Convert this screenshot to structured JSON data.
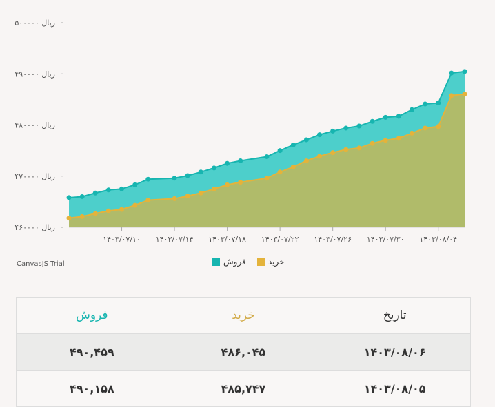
{
  "chart_data": {
    "type": "area",
    "y_unit_label": "ریال",
    "ylim": [
      460000,
      500000
    ],
    "yticks": [
      "۴۶۰۰۰۰",
      "۴۷۰۰۰۰",
      "۴۸۰۰۰۰",
      "۴۹۰۰۰۰",
      "۵۰۰۰۰۰"
    ],
    "ytick_values": [
      460000,
      470000,
      480000,
      490000,
      500000
    ],
    "x_ticklabels": [
      "۱۴۰۳/۰۷/۱۰",
      "۱۴۰۳/۰۷/۱۴",
      "۱۴۰۳/۰۷/۱۸",
      "۱۴۰۳/۰۷/۲۲",
      "۱۴۰۳/۰۷/۲۶",
      "۱۴۰۳/۰۷/۳۰",
      "۱۴۰۳/۰۸/۰۴"
    ],
    "x_tick_days": [
      10,
      14,
      18,
      22,
      26,
      30,
      34
    ],
    "x_days": [
      6,
      7,
      8,
      9,
      10,
      11,
      12,
      14,
      15,
      16,
      17,
      18,
      19,
      21,
      22,
      23,
      24,
      25,
      26,
      27,
      28,
      29,
      30,
      31,
      32,
      33,
      34,
      35,
      36
    ],
    "series": [
      {
        "name": "فروش",
        "color": "#17b5b0",
        "fill": "#4dcfcb",
        "values": [
          465800,
          466000,
          466700,
          467300,
          467500,
          468300,
          469400,
          469600,
          470100,
          470800,
          471600,
          472500,
          473000,
          473800,
          475000,
          476100,
          477100,
          478100,
          478800,
          479400,
          479800,
          480700,
          481500,
          481700,
          483000,
          484100,
          484300,
          490158,
          490459
        ]
      },
      {
        "name": "خرید",
        "color": "#e4b33b",
        "fill": "#b0bb6a",
        "values": [
          461800,
          462100,
          462700,
          463200,
          463500,
          464300,
          465300,
          465600,
          466100,
          466700,
          467500,
          468300,
          468800,
          469600,
          470800,
          471800,
          473000,
          473900,
          474600,
          475200,
          475500,
          476400,
          477000,
          477400,
          478400,
          479400,
          479700,
          485747,
          486045
        ]
      }
    ]
  },
  "legend": [
    {
      "label": "فروش",
      "color": "#17b5b0"
    },
    {
      "label": "خرید",
      "color": "#e4b33b"
    }
  ],
  "trial_text": "CanvasJS Trial",
  "table": {
    "headers": {
      "sell": "فروش",
      "buy": "خرید",
      "date": "تاریخ"
    },
    "header_colors": {
      "sell": "#17b5b0",
      "buy": "#d2ab49",
      "date": "#333333"
    },
    "rows": [
      {
        "sell": "۴۹۰,۴۵۹",
        "buy": "۴۸۶,۰۴۵",
        "date": "۱۴۰۳/۰۸/۰۶"
      },
      {
        "sell": "۴۹۰,۱۵۸",
        "buy": "۴۸۵,۷۴۷",
        "date": "۱۴۰۳/۰۸/۰۵"
      }
    ]
  }
}
